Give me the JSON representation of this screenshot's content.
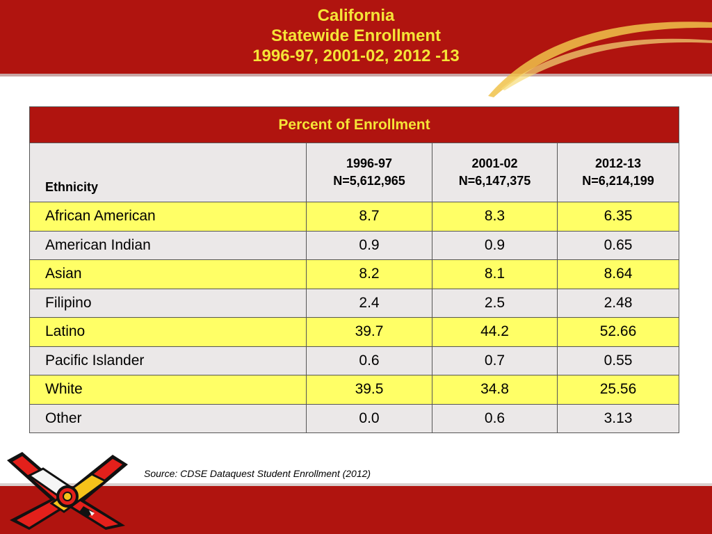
{
  "title": {
    "line1": "California",
    "line2": "Statewide Enrollment",
    "line3": "1996-97,  2001-02,  2012 -13"
  },
  "colors": {
    "header_red": "#b0140f",
    "title_yellow": "#f5e437",
    "row_yellow": "#ffff66",
    "row_gray": "#ebe8e8"
  },
  "table": {
    "caption": "Percent of Enrollment",
    "ethnicity_header": "Ethnicity",
    "columns": [
      {
        "year": "1996-97",
        "n": "N=5,612,965"
      },
      {
        "year": "2001-02",
        "n": "N=6,147,375"
      },
      {
        "year": "2012-13",
        "n": "N=6,214,199"
      }
    ],
    "rows": [
      {
        "name": "African American",
        "values": [
          "8.7",
          "8.3",
          "6.35"
        ]
      },
      {
        "name": "American Indian",
        "values": [
          "0.9",
          "0.9",
          "0.65"
        ]
      },
      {
        "name": "Asian",
        "values": [
          "8.2",
          "8.1",
          "8.64"
        ]
      },
      {
        "name": "Filipino",
        "values": [
          "2.4",
          "2.5",
          "2.48"
        ]
      },
      {
        "name": "Latino",
        "values": [
          "39.7",
          "44.2",
          "52.66"
        ]
      },
      {
        "name": "Pacific Islander",
        "values": [
          "0.6",
          "0.7",
          "0.55"
        ]
      },
      {
        "name": "White",
        "values": [
          "39.5",
          "34.8",
          "25.56"
        ]
      },
      {
        "name": "Other",
        "values": [
          "0.0",
          "0.6",
          "3.13"
        ]
      }
    ]
  },
  "source": "Source: CDSE Dataquest Student Enrollment (2012)",
  "logo_icon": "interlaced-knot-logo-icon"
}
